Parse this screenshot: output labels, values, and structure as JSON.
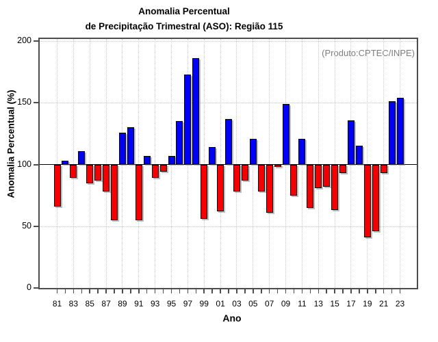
{
  "header": {
    "title_line1": "Anomalia Percentual",
    "title_line2": "de Precipitação Trimestral (ASO): Região 115"
  },
  "annotation": "(Produto:CPTEC/INPE)",
  "chart_data": {
    "type": "bar",
    "title": "Anomalia Percentual de Precipitação Trimestral (ASO): Região 115",
    "xlabel": "Ano",
    "ylabel": "Anomalia Percentual (%)",
    "ylim": [
      0,
      200
    ],
    "yticks": [
      0,
      50,
      100,
      150,
      200
    ],
    "baseline": 100,
    "grid": "dotted gridlines at y=50,150,200 and at labeled years; solid black line at y=100",
    "legend_position": "none",
    "colors": {
      "above_baseline": "#0000f2",
      "below_baseline": "#f40000"
    },
    "categories": [
      "81",
      "82",
      "83",
      "84",
      "85",
      "86",
      "87",
      "88",
      "89",
      "90",
      "91",
      "92",
      "93",
      "94",
      "95",
      "96",
      "97",
      "98",
      "99",
      "00",
      "01",
      "02",
      "03",
      "04",
      "05",
      "06",
      "07",
      "08",
      "09",
      "10",
      "11",
      "12",
      "13",
      "14",
      "15",
      "16",
      "17",
      "18",
      "19",
      "20",
      "21",
      "22",
      "23"
    ],
    "xtick_labels": [
      "81",
      "83",
      "85",
      "87",
      "89",
      "91",
      "93",
      "95",
      "97",
      "99",
      "01",
      "03",
      "05",
      "07",
      "09",
      "11",
      "13",
      "15",
      "17",
      "19",
      "21",
      "23"
    ],
    "values": [
      66,
      103,
      89,
      111,
      85,
      87,
      78,
      55,
      126,
      130,
      55,
      107,
      89,
      94,
      107,
      135,
      173,
      186,
      56,
      114,
      62,
      137,
      78,
      87,
      121,
      78,
      61,
      98,
      149,
      75,
      121,
      65,
      81,
      82,
      63,
      93,
      136,
      115,
      41,
      46,
      93,
      151,
      154
    ]
  }
}
